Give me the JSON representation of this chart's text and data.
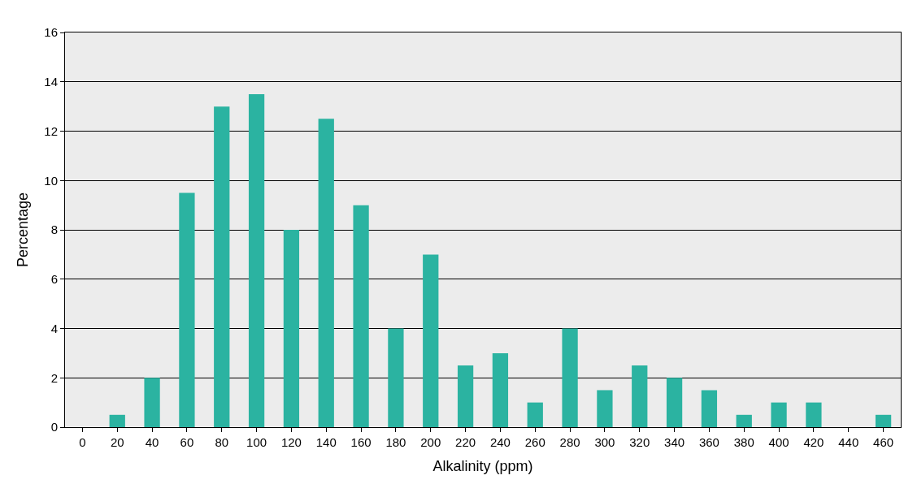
{
  "chart_data": {
    "type": "bar",
    "xlabel": "Alkalinity (ppm)",
    "ylabel": "Percentage",
    "categories": [
      "0",
      "20",
      "40",
      "60",
      "80",
      "100",
      "120",
      "140",
      "160",
      "180",
      "200",
      "220",
      "240",
      "260",
      "280",
      "300",
      "320",
      "340",
      "360",
      "380",
      "400",
      "420",
      "440",
      "460"
    ],
    "values": [
      0,
      0.5,
      2,
      9.5,
      13,
      13.5,
      8,
      12.5,
      9,
      4,
      7,
      2.5,
      3,
      1,
      4,
      1.5,
      2.5,
      2,
      1.5,
      0.5,
      1,
      1,
      0,
      0.5
    ],
    "color": "#2bb3a1",
    "ylim": [
      0,
      16
    ],
    "yticks": [
      0,
      2,
      4,
      6,
      8,
      10,
      12,
      14,
      16
    ],
    "grid": "y",
    "legend": false
  }
}
